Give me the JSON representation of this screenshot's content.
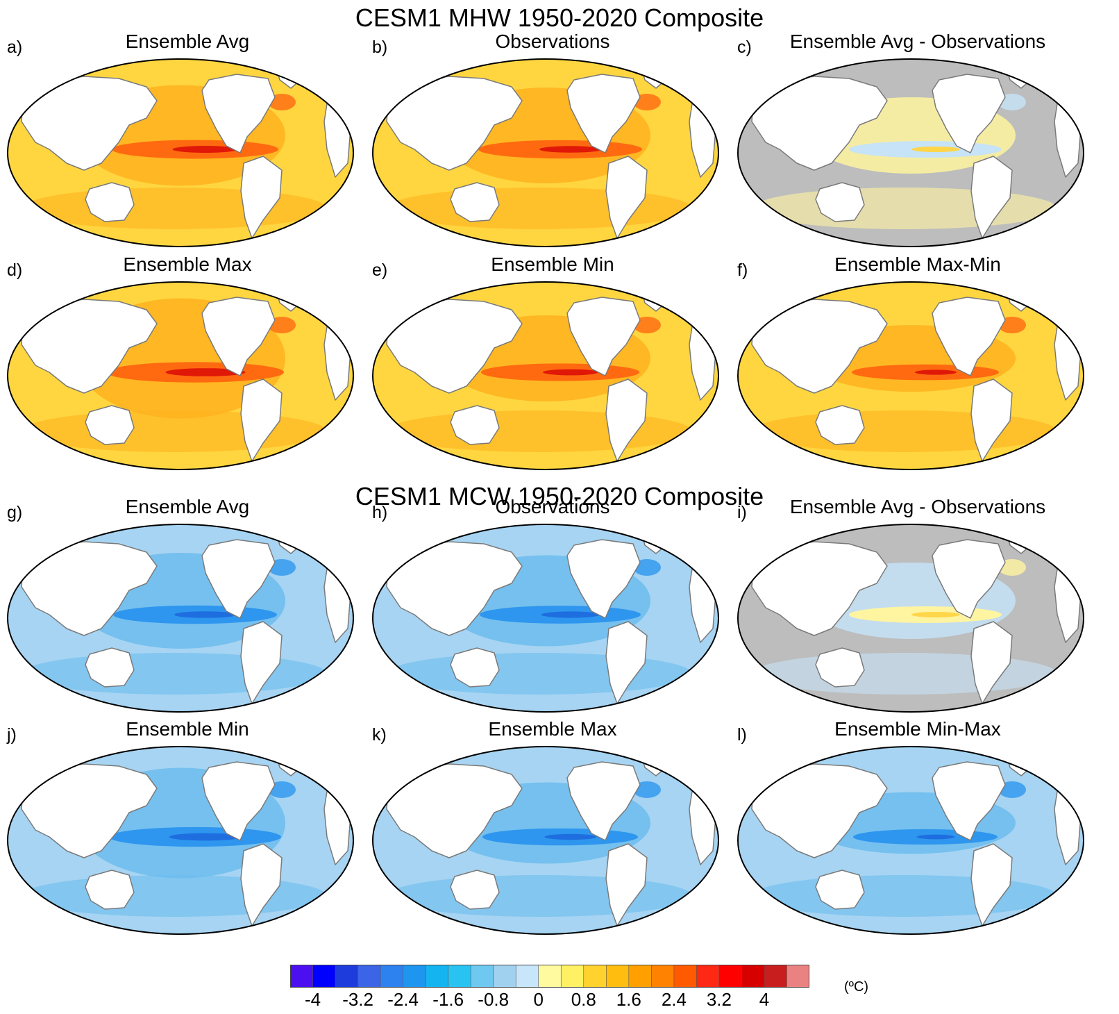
{
  "figure": {
    "sections": [
      {
        "id": "mhw",
        "title": "CESM1 MHW 1950-2020 Composite"
      },
      {
        "id": "mcw",
        "title": "CESM1 MCW 1950-2020 Composite"
      }
    ],
    "panels": [
      {
        "letter": "a)",
        "title": "Ensemble Avg",
        "scheme": "warm",
        "intensity": 0.75
      },
      {
        "letter": "b)",
        "title": "Observations",
        "scheme": "warm",
        "intensity": 0.7
      },
      {
        "letter": "c)",
        "title": "Ensemble Avg - Observations",
        "scheme": "diff-warm",
        "intensity": 0.5
      },
      {
        "letter": "d)",
        "title": "Ensemble Max",
        "scheme": "warm",
        "intensity": 0.95
      },
      {
        "letter": "e)",
        "title": "Ensemble Min",
        "scheme": "warm",
        "intensity": 0.6
      },
      {
        "letter": "f)",
        "title": "Ensemble Max-Min",
        "scheme": "warm",
        "intensity": 0.4
      },
      {
        "letter": "g)",
        "title": "Ensemble Avg",
        "scheme": "cold",
        "intensity": 0.7
      },
      {
        "letter": "h)",
        "title": "Observations",
        "scheme": "cold",
        "intensity": 0.65
      },
      {
        "letter": "i)",
        "title": "Ensemble Avg - Observations",
        "scheme": "diff-cold",
        "intensity": 0.5
      },
      {
        "letter": "j)",
        "title": "Ensemble Min",
        "scheme": "cold",
        "intensity": 0.85
      },
      {
        "letter": "k)",
        "title": "Ensemble Max",
        "scheme": "cold",
        "intensity": 0.55
      },
      {
        "letter": "l)",
        "title": "Ensemble Min-Max",
        "scheme": "cold",
        "intensity": 0.35
      }
    ]
  },
  "colorbar": {
    "colors": [
      "#4b0ff0",
      "#0000ff",
      "#1e3cdc",
      "#3c64e6",
      "#2d82f0",
      "#1e96f0",
      "#14b4f0",
      "#28c3f0",
      "#6ec8f0",
      "#a0d2f0",
      "#c8e6fa",
      "#fffaa0",
      "#fff064",
      "#ffd22d",
      "#ffbe0f",
      "#ffa000",
      "#ff8200",
      "#ff5a00",
      "#ff2814",
      "#ff0000",
      "#d70000",
      "#c81e1e",
      "#eb8282"
    ],
    "tick_labels": [
      "-4",
      "-3.2",
      "-2.4",
      "-1.6",
      "-0.8",
      "0",
      "0.8",
      "1.6",
      "2.4",
      "3.2",
      "4"
    ],
    "unit": "(ºC)"
  }
}
